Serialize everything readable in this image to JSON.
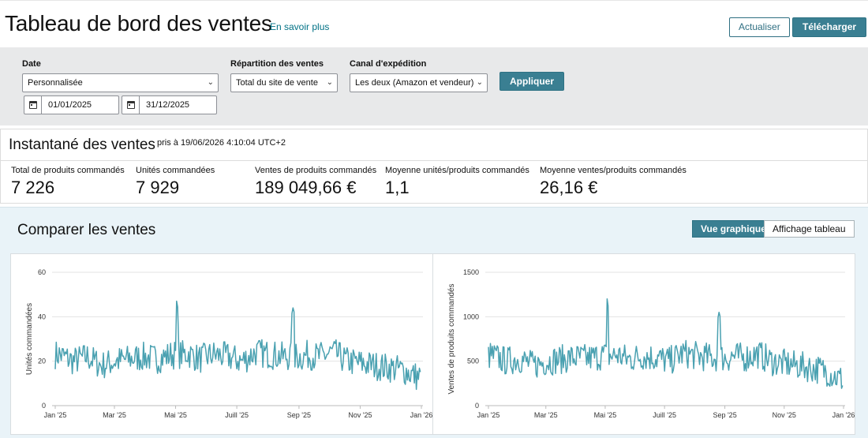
{
  "header": {
    "title": "Tableau de bord des ventes",
    "learn_more": "En savoir plus",
    "refresh_label": "Actualiser",
    "download_label": "Télécharger"
  },
  "filters": {
    "date_label": "Date",
    "date_value": "Personnalisée",
    "start_date": "01/01/2025",
    "end_date": "31/12/2025",
    "breakdown_label": "Répartition des ventes",
    "breakdown_value": "Total du site de vente",
    "channel_label": "Canal d'expédition",
    "channel_value": "Les deux (Amazon et vendeur)",
    "apply_label": "Appliquer"
  },
  "snapshot": {
    "title": "Instantané des ventes",
    "timestamp": "pris à 19/06/2026 4:10:04 UTC+2",
    "metrics": [
      {
        "label": "Total de produits commandés",
        "value": "7 226"
      },
      {
        "label": "Unités commandées",
        "value": "7 929"
      },
      {
        "label": "Ventes de produits commandés",
        "value": "189 049,66 €"
      },
      {
        "label": "Moyenne unités/produits commandés",
        "value": "1,1"
      },
      {
        "label": "Moyenne ventes/produits commandés",
        "value": "26,16 €"
      }
    ]
  },
  "compare": {
    "title": "Comparer les ventes",
    "graph_view_label": "Vue graphique",
    "table_view_label": "Affichage tableau",
    "graph_view_active": true
  },
  "colors": {
    "accent": "#3a7f92",
    "line": "#4aa1b1",
    "link": "#007185"
  },
  "chart_data": [
    {
      "type": "line",
      "title": "",
      "xlabel": "",
      "ylabel": "Unités commandées",
      "ylim": [
        0,
        60
      ],
      "yticks": [
        0,
        20,
        40,
        60
      ],
      "xticks": [
        "Jan '25",
        "Mar '25",
        "Mai '25",
        "Juill '25",
        "Sep '25",
        "Nov '25",
        "Jan '26"
      ],
      "grid": true,
      "x": [
        "2025-01-05",
        "2025-01-19",
        "2025-02-02",
        "2025-02-16",
        "2025-03-02",
        "2025-03-16",
        "2025-03-30",
        "2025-04-13",
        "2025-04-27",
        "2025-05-02",
        "2025-05-11",
        "2025-05-25",
        "2025-06-08",
        "2025-06-22",
        "2025-07-06",
        "2025-07-20",
        "2025-08-03",
        "2025-08-17",
        "2025-08-26",
        "2025-09-07",
        "2025-09-21",
        "2025-10-05",
        "2025-10-19",
        "2025-11-02",
        "2025-11-16",
        "2025-11-30",
        "2025-12-14",
        "2025-12-28"
      ],
      "series": [
        {
          "values": [
            23,
            20,
            22,
            18,
            20,
            21,
            22,
            21,
            23,
            47,
            24,
            21,
            23,
            22,
            20,
            24,
            23,
            22,
            44,
            23,
            22,
            24,
            20,
            19,
            18,
            17,
            16,
            13
          ]
        }
      ]
    },
    {
      "type": "line",
      "title": "",
      "xlabel": "",
      "ylabel": "Ventes de produits commandés",
      "ylim": [
        0,
        1500
      ],
      "yticks": [
        0,
        500,
        1000,
        1500
      ],
      "xticks": [
        "Jan '25",
        "Mar '25",
        "Mai '25",
        "Juill '25",
        "Sep '25",
        "Nov '25",
        "Jan '26"
      ],
      "grid": true,
      "x": [
        "2025-01-05",
        "2025-01-19",
        "2025-02-02",
        "2025-02-16",
        "2025-03-02",
        "2025-03-16",
        "2025-03-30",
        "2025-04-13",
        "2025-04-27",
        "2025-05-03",
        "2025-05-11",
        "2025-05-25",
        "2025-06-08",
        "2025-06-22",
        "2025-07-06",
        "2025-07-20",
        "2025-08-03",
        "2025-08-17",
        "2025-08-26",
        "2025-09-07",
        "2025-09-21",
        "2025-10-05",
        "2025-10-19",
        "2025-11-02",
        "2025-11-16",
        "2025-11-30",
        "2025-12-14",
        "2025-12-28"
      ],
      "series": [
        {
          "values": [
            560,
            500,
            530,
            450,
            500,
            520,
            540,
            530,
            560,
            1200,
            580,
            520,
            560,
            540,
            500,
            590,
            560,
            540,
            1050,
            560,
            540,
            580,
            500,
            470,
            450,
            420,
            390,
            300
          ]
        }
      ]
    }
  ]
}
